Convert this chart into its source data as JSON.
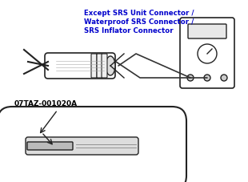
{
  "bg_color": "#ffffff",
  "text_color": "#000000",
  "blue_color": "#0000cc",
  "title_lines": [
    "Except SRS Unit Connector /",
    "Waterproof SRS Connector /",
    "SRS Inflator Connector"
  ],
  "label_code": "07TAZ-001020A",
  "fig_width": 3.1,
  "fig_height": 2.27,
  "dpi": 100
}
